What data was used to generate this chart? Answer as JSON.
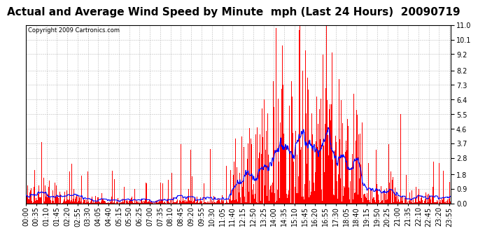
{
  "title": "Actual and Average Wind Speed by Minute  mph (Last 24 Hours)  20090719",
  "copyright": "Copyright 2009 Cartronics.com",
  "yticks": [
    0.0,
    0.9,
    1.8,
    2.8,
    3.7,
    4.6,
    5.5,
    6.4,
    7.3,
    8.2,
    9.2,
    10.1,
    11.0
  ],
  "ylim": [
    0.0,
    11.0
  ],
  "background_color": "#ffffff",
  "plot_bg_color": "#ffffff",
  "grid_color": "#bbbbbb",
  "bar_color": "#ff0000",
  "line_color": "#0000ff",
  "n_minutes": 1440,
  "xtick_interval": 35,
  "title_fontsize": 11,
  "tick_fontsize": 7,
  "copyright_fontsize": 6
}
